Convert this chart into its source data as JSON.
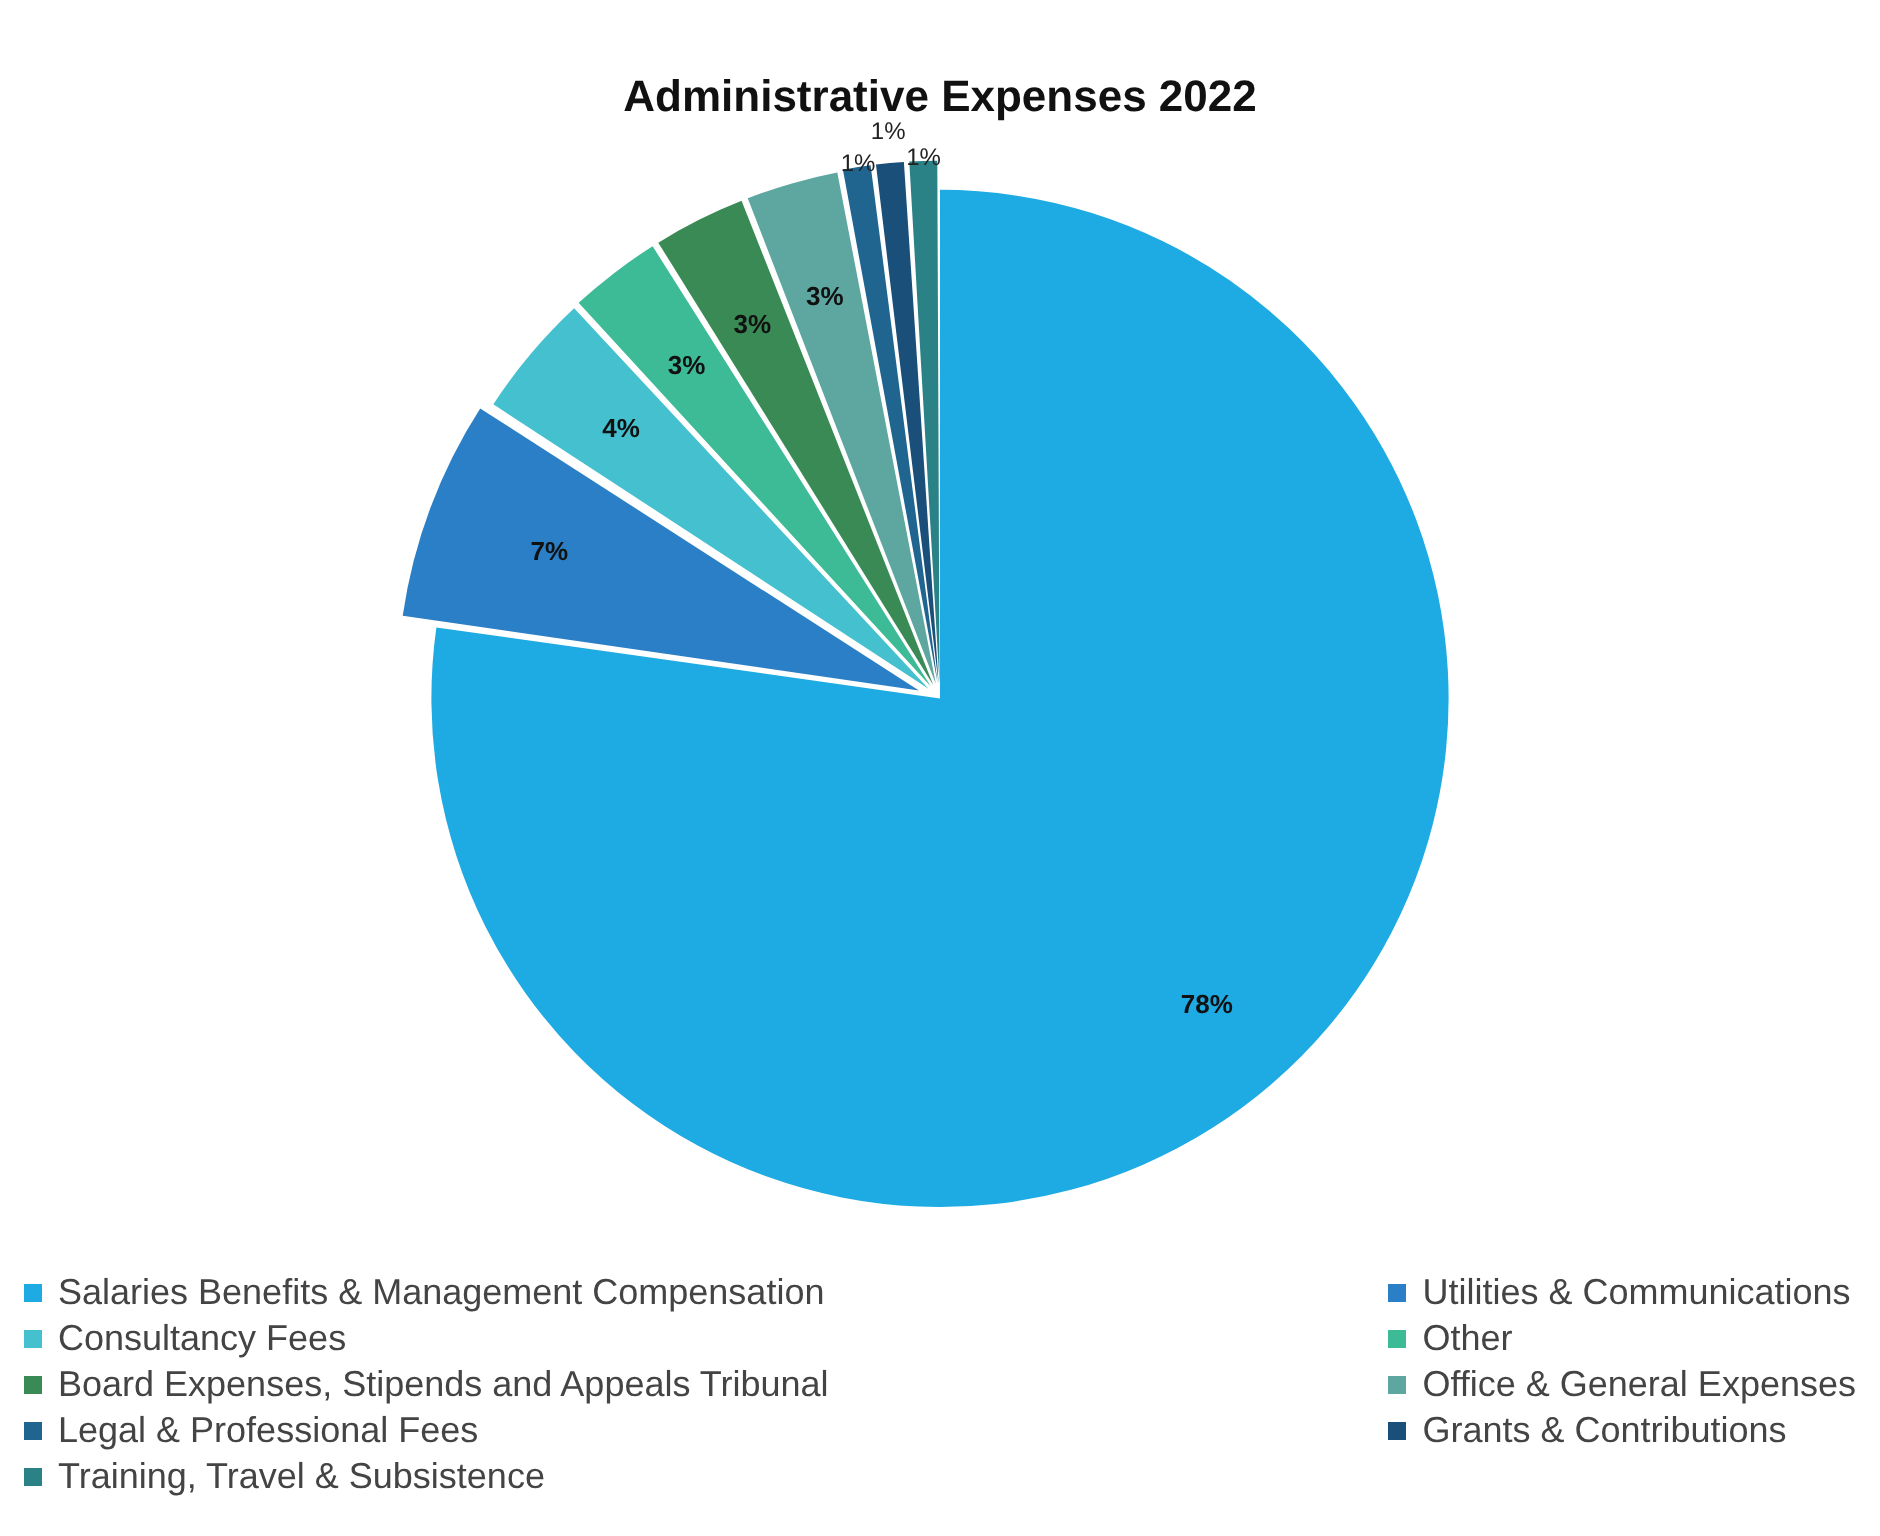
{
  "chart_data": {
    "type": "pie",
    "title": "Administrative Expenses 2022",
    "categories": [
      "Salaries Benefits & Management Compensation",
      "Utilities & Communications",
      "Consultancy Fees",
      "Other",
      "Board Expenses, Stipends and Appeals Tribunal",
      "Office & General Expenses",
      "Legal & Professional Fees",
      "Grants & Contributions",
      "Training, Travel & Subsistence"
    ],
    "values": [
      78,
      7,
      4,
      3,
      3,
      3,
      1,
      1,
      1
    ],
    "colors": [
      "#1eaae2",
      "#2a7fc6",
      "#44c0cf",
      "#3dba96",
      "#3a8a55",
      "#5ea7a0",
      "#1f6590",
      "#1a4f7a",
      "#2a8287"
    ],
    "value_labels": [
      "78%",
      "7%",
      "4%",
      "3%",
      "3%",
      "3%",
      "1%",
      "1%",
      "1%"
    ],
    "legend": "bottom"
  }
}
